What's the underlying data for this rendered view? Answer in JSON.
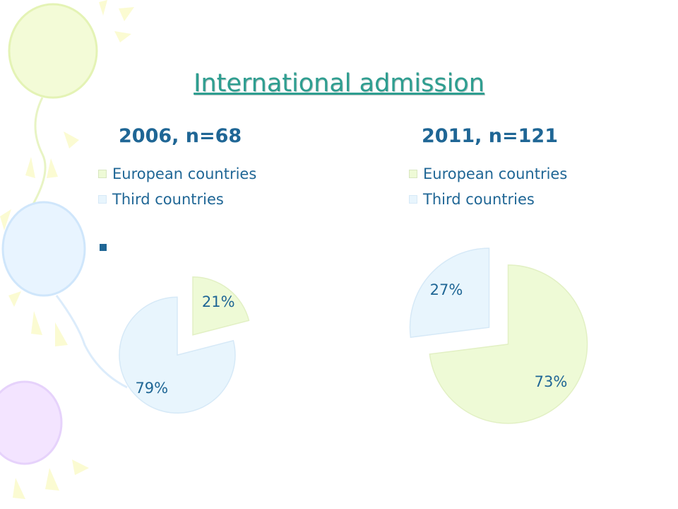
{
  "slide": {
    "title": "International admission"
  },
  "colors": {
    "european": "#eefad6",
    "third": "#e8f5fd",
    "text": "#1f6695",
    "title": "#2e9e90"
  },
  "decor_icons": [
    "balloon-icon",
    "confetti-icon"
  ],
  "chart_data": [
    {
      "type": "pie",
      "title": "2006, n=68",
      "categories": [
        "European countries",
        "Third countries"
      ],
      "values": [
        21,
        79
      ],
      "labels": [
        "21%",
        "79%"
      ],
      "legend": "top"
    },
    {
      "type": "pie",
      "title": "2011, n=121",
      "categories": [
        "European countries",
        "Third countries"
      ],
      "values": [
        73,
        27
      ],
      "labels": [
        "73%",
        "27%"
      ],
      "legend": "top"
    }
  ]
}
